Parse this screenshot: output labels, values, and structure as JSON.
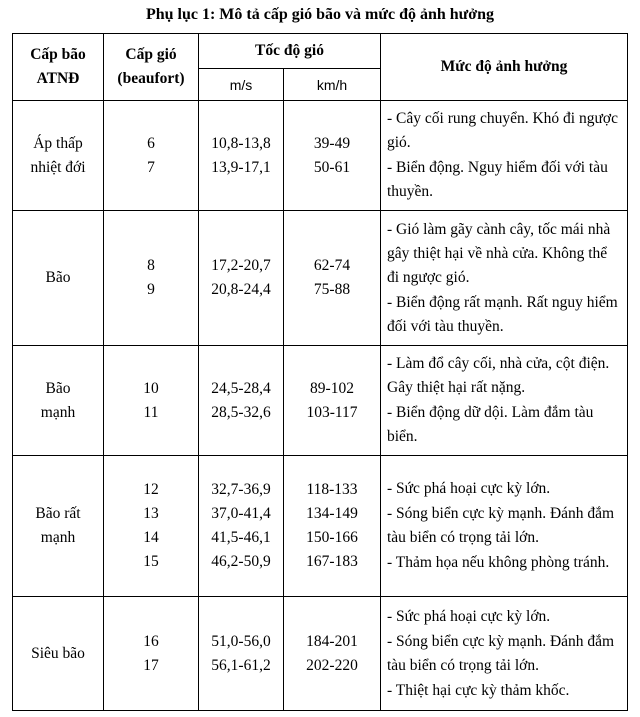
{
  "title": "Phụ lục 1: Mô tả cấp gió bão và mức độ ảnh hưởng",
  "header": {
    "storm_level": [
      "Cấp bão",
      "ATNĐ"
    ],
    "wind_level": [
      "Cấp gió",
      "(beaufort)"
    ],
    "wind_speed": "Tốc độ gió",
    "unit_ms": "m/s",
    "unit_kmh": "km/h",
    "impact": "Mức độ ảnh hưởng"
  },
  "rows": [
    {
      "category": [
        "Áp thấp",
        "nhiệt đới"
      ],
      "levels": [
        "6",
        "7"
      ],
      "ms": [
        "10,8-13,8",
        "13,9-17,1"
      ],
      "kmh": [
        "39-49",
        "50-61"
      ],
      "impacts": [
        "- Cây cối rung chuyển. Khó đi ngược gió.",
        "- Biển động. Nguy hiểm đối với tàu thuyền."
      ]
    },
    {
      "category": [
        "Bão"
      ],
      "levels": [
        "8",
        "9"
      ],
      "ms": [
        "17,2-20,7",
        "20,8-24,4"
      ],
      "kmh": [
        "62-74",
        "75-88"
      ],
      "impacts": [
        "- Gió làm gãy cành cây, tốc mái nhà gây thiệt hại về nhà cửa. Không thể đi ngược gió.",
        "- Biển động rất mạnh. Rất nguy hiểm đối với tàu thuyền."
      ]
    },
    {
      "category": [
        "Bão",
        "mạnh"
      ],
      "levels": [
        "10",
        "11"
      ],
      "ms": [
        "24,5-28,4",
        "28,5-32,6"
      ],
      "kmh": [
        "89-102",
        "103-117"
      ],
      "impacts": [
        "- Làm đổ cây cối, nhà cửa, cột điện. Gây thiệt hại rất nặng.",
        "- Biển động dữ dội. Làm đắm tàu biển."
      ]
    },
    {
      "category": [
        "Bão rất",
        "mạnh"
      ],
      "levels": [
        "12",
        "13",
        "14",
        "15"
      ],
      "ms": [
        "32,7-36,9",
        "37,0-41,4",
        "41,5-46,1",
        "46,2-50,9"
      ],
      "kmh": [
        "118-133",
        "134-149",
        "150-166",
        "167-183"
      ],
      "impacts": [
        "- Sức phá hoại cực kỳ lớn.",
        "- Sóng biển cực kỳ mạnh. Đánh đắm tàu biển có trọng tải lớn.",
        "- Thảm họa nếu không phòng tránh."
      ]
    },
    {
      "category": [
        "Siêu bão"
      ],
      "levels": [
        "16",
        "17"
      ],
      "ms": [
        "51,0-56,0",
        "56,1-61,2"
      ],
      "kmh": [
        "184-201",
        "202-220"
      ],
      "impacts": [
        "- Sức phá hoại cực kỳ lớn.",
        "- Sóng biển cực kỳ mạnh. Đánh đắm tàu biển có trọng tải lớn.",
        "- Thiệt hại cực kỳ thảm khốc."
      ]
    }
  ]
}
